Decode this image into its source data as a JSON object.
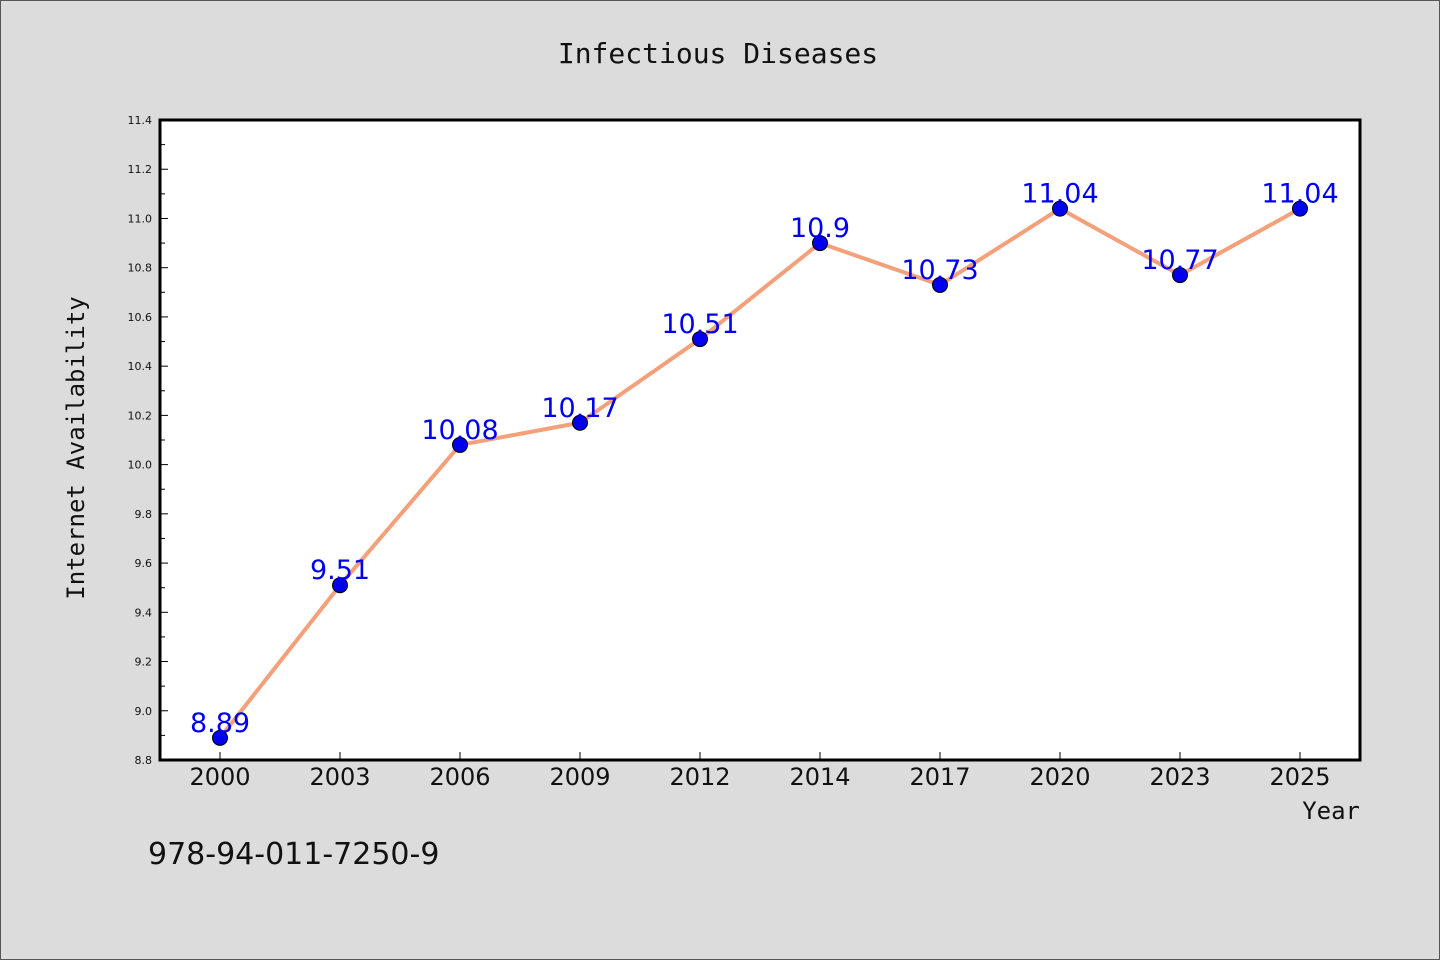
{
  "chart_data": {
    "type": "line",
    "title": "Infectious Diseases",
    "xlabel": "Year",
    "ylabel": "Internet Availability",
    "categories": [
      "2000",
      "2003",
      "2006",
      "2009",
      "2012",
      "2014",
      "2017",
      "2020",
      "2023",
      "2025"
    ],
    "series": [
      {
        "values": [
          8.89,
          9.51,
          10.08,
          10.17,
          10.51,
          10.9,
          10.73,
          11.04,
          10.77,
          11.04
        ],
        "data_labels": [
          "8.89",
          "9.51",
          "10.08",
          "10.17",
          "10.51",
          "10.9",
          "10.73",
          "11.04",
          "10.77",
          "11.04"
        ],
        "line_color": "#f4a07a",
        "marker_color": "#0000ee"
      }
    ],
    "ylim": [
      8.8,
      11.4
    ],
    "yticks": [
      "8.8",
      "9.0",
      "9.2",
      "9.4",
      "9.6",
      "9.8",
      "10.0",
      "10.2",
      "10.4",
      "10.6",
      "10.8",
      "11.0",
      "11.2",
      "11.4"
    ],
    "grid": false,
    "legend": "none"
  },
  "footer": {
    "isbn": "978-94-011-7250-9"
  }
}
